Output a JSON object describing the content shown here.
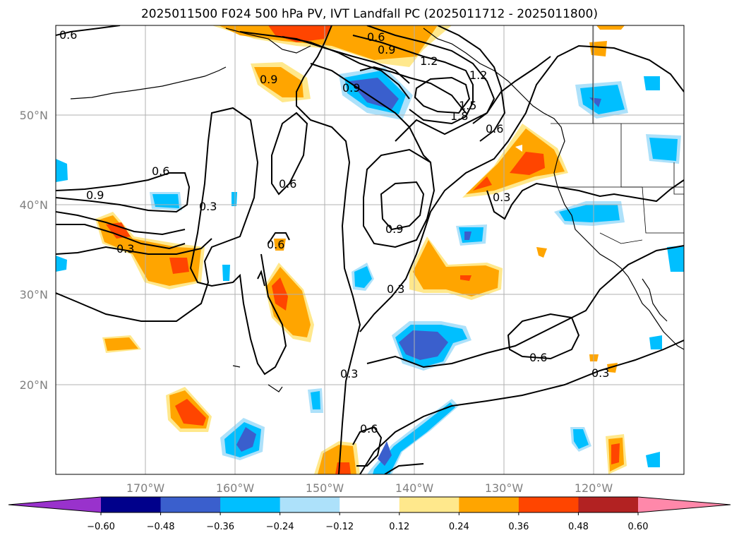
{
  "title": "2025011500 F024 500 hPa PV, IVT Landfall PC (2025011712 - 2025011800)",
  "lat_labels": [
    "50°N",
    "40°N",
    "30°N",
    "20°N"
  ],
  "lon_labels": [
    "170°W",
    "160°W",
    "150°W",
    "140°W",
    "130°W",
    "120°W"
  ],
  "colorbar": {
    "ticks": [
      "−0.60",
      "−0.48",
      "−0.36",
      "−0.24",
      "−0.12",
      "0.12",
      "0.24",
      "0.36",
      "0.48",
      "0.60"
    ],
    "colors": [
      "#9932CC",
      "#00008B",
      "#3A5FCD",
      "#00BFFF",
      "#ADE1FA",
      "#FFFFFF",
      "#FFE88C",
      "#FFA500",
      "#FF4500",
      "#B22222",
      "#FF88AA"
    ]
  },
  "contour_labels": [
    "0.6",
    "0.9",
    "0.3",
    "0.6",
    "0.9",
    "1.2",
    "0.6",
    "0.9",
    "0.6",
    "0.3",
    "0.6",
    "0.9",
    "0.3",
    "0.3",
    "0.6",
    "0.3",
    "0.3",
    "0.6",
    "0.6",
    "0.9",
    "1.2",
    "1.5",
    "1.8"
  ],
  "colors": {
    "orange": "#FFA500",
    "red": "#FF4500",
    "light_yellow": "#FFE88C",
    "cyan": "#00BFFF",
    "blue": "#3A5FCD",
    "light_blue": "#ADE1FA"
  }
}
